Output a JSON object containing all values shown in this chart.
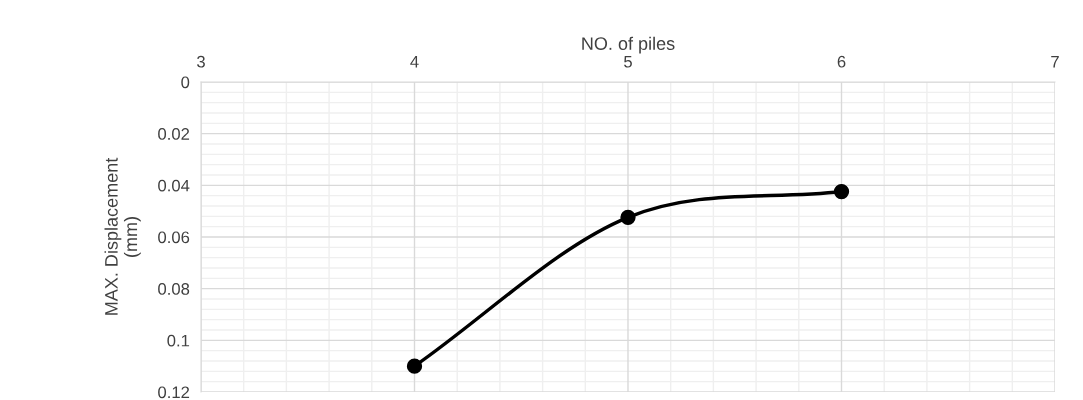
{
  "chart_data": {
    "type": "line",
    "xlabel": "NO. of piles",
    "ylabel": "MAX. Displacement\n(mm)",
    "x": [
      4,
      5,
      6
    ],
    "series": [
      {
        "color": "#000000",
        "values": [
          0.11,
          0.0524,
          0.0424
        ]
      }
    ],
    "xlim": [
      3,
      7
    ],
    "xticks": [
      3,
      4,
      5,
      6,
      7
    ],
    "ylim": [
      0.12,
      0
    ],
    "yticks": [
      0,
      0.02,
      0.04,
      0.06,
      0.08,
      0.1,
      0.12
    ],
    "grid": true,
    "marker": "circle",
    "line_style": "solid",
    "legend": false
  }
}
